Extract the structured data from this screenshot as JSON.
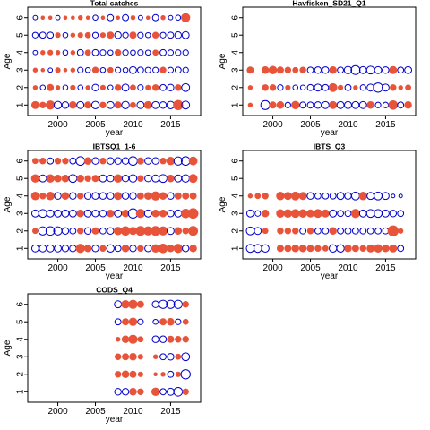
{
  "colors": {
    "positive": "#e8543a",
    "negative": "#0000cc",
    "axis": "#000000"
  },
  "chart_data": [
    {
      "type": "scatter",
      "title": "Total catches",
      "xlabel": "year",
      "ylabel": "Age",
      "xlim": [
        1996,
        2019
      ],
      "ylim": [
        0.4,
        6.6
      ],
      "xticks": [
        2000,
        2005,
        2010,
        2015
      ],
      "yticks": [
        1,
        2,
        3,
        4,
        5,
        6
      ],
      "years": [
        1997,
        1998,
        1999,
        2000,
        2001,
        2002,
        2003,
        2004,
        2005,
        2006,
        2007,
        2008,
        2009,
        2010,
        2011,
        2012,
        2013,
        2014,
        2015,
        2016,
        2017
      ],
      "residuals": {
        "1": [
          0.9,
          0.6,
          1.2,
          -0.9,
          -0.7,
          0.8,
          -0.8,
          0.7,
          -0.9,
          0.6,
          -0.8,
          0.7,
          -0.9,
          0.5,
          -0.8,
          0.9,
          -0.8,
          -0.7,
          -0.9,
          1.5,
          -1.0
        ],
        "2": [
          0.3,
          -0.4,
          0.7,
          0.3,
          -0.4,
          0.4,
          -0.4,
          0.3,
          -0.7,
          0.4,
          -0.4,
          0.6,
          -0.8,
          0.5,
          -0.5,
          0.4,
          0.6,
          -0.6,
          -0.7,
          0.6,
          -1.0
        ],
        "3": [
          0.3,
          0.2,
          -0.3,
          0.4,
          0.2,
          0.3,
          -0.5,
          -0.4,
          0.6,
          -0.4,
          0.5,
          -0.5,
          -0.4,
          -0.8,
          -0.6,
          -0.5,
          -0.5,
          0.6,
          -0.5,
          -0.6,
          -0.5
        ],
        "4": [
          -0.3,
          0.3,
          0.4,
          0.3,
          -0.4,
          0.3,
          -0.6,
          0.5,
          -0.6,
          -0.5,
          -0.4,
          0.6,
          -0.5,
          -0.4,
          -0.5,
          -0.4,
          0.5,
          -0.6,
          -0.5,
          -0.5,
          -0.5
        ],
        "5": [
          -0.5,
          -0.6,
          -0.6,
          0.4,
          -0.4,
          0.3,
          0.4,
          0.5,
          -0.5,
          0.4,
          0.7,
          -0.7,
          -0.5,
          0.7,
          -0.5,
          -0.4,
          0.6,
          -0.5,
          -0.6,
          -0.7,
          -0.8
        ],
        "6": [
          -0.3,
          0.2,
          0.2,
          -0.3,
          0.2,
          0.2,
          0.3,
          0.2,
          -0.4,
          0.2,
          -0.6,
          0.2,
          -0.6,
          0.3,
          -0.3,
          0.2,
          -0.6,
          0.3,
          -0.3,
          -0.4,
          1.2
        ]
      }
    },
    {
      "type": "scatter",
      "title": "Havfisken_SD21_Q1",
      "xlabel": "year",
      "ylabel": "Age",
      "xlim": [
        1996,
        2019
      ],
      "ylim": [
        0.4,
        6.6
      ],
      "xticks": [
        2000,
        2005,
        2010,
        2015
      ],
      "yticks": [
        1,
        2,
        3,
        4,
        5,
        6
      ],
      "years": [
        1997,
        1999,
        2000,
        2001,
        2002,
        2003,
        2004,
        2005,
        2006,
        2007,
        2008,
        2009,
        2010,
        2011,
        2012,
        2013,
        2014,
        2015,
        2016,
        2017,
        2018
      ],
      "residuals": {
        "1": [
          0.3,
          -1.3,
          0.7,
          0.8,
          -0.5,
          1.0,
          -0.6,
          -0.6,
          -0.7,
          -0.8,
          0.9,
          -0.8,
          -0.8,
          -0.8,
          -0.8,
          0.8,
          -0.5,
          -0.5,
          1.3,
          -0.6,
          0.8
        ],
        "2": [
          0.3,
          0.6,
          0.6,
          -0.5,
          0.4,
          -0.4,
          -0.4,
          -0.6,
          -0.8,
          -0.6,
          1.1,
          0.4,
          -0.6,
          0.3,
          -0.5,
          -0.8,
          -1.4,
          -0.8,
          0.6,
          0.3,
          0.5
        ],
        "3": [
          0.7,
          0.8,
          1.0,
          0.7,
          0.6,
          0.5,
          0.6,
          -0.6,
          -0.7,
          -0.7,
          0.8,
          -0.6,
          -0.9,
          -1.3,
          -0.8,
          -1.0,
          -0.8,
          -0.7,
          0.9,
          -0.6,
          -0.8
        ]
      }
    },
    {
      "type": "scatter",
      "title": "IBTSQ1_1-6",
      "xlabel": "year",
      "ylabel": "Age",
      "xlim": [
        1996,
        2019
      ],
      "ylim": [
        0.4,
        6.6
      ],
      "xticks": [
        2000,
        2005,
        2010,
        2015
      ],
      "yticks": [
        1,
        2,
        3,
        4,
        5,
        6
      ],
      "years": [
        1997,
        1998,
        1999,
        2000,
        2001,
        2002,
        2003,
        2004,
        2005,
        2006,
        2007,
        2008,
        2009,
        2010,
        2011,
        2012,
        2013,
        2014,
        2015,
        2016,
        2017,
        2018
      ],
      "residuals": {
        "1": [
          -0.8,
          -0.8,
          -0.8,
          -0.8,
          -0.7,
          -0.7,
          1.2,
          0.8,
          -0.7,
          0.6,
          -0.9,
          -0.6,
          0.8,
          -0.7,
          0.6,
          -0.7,
          1.0,
          1.3,
          0.8,
          1.2,
          -0.7,
          0.8
        ],
        "2": [
          0.5,
          -1.1,
          -1.2,
          -1.1,
          -0.7,
          -0.6,
          0.6,
          -0.7,
          0.7,
          -0.6,
          -0.7,
          1.0,
          1.3,
          0.9,
          1.4,
          1.2,
          1.4,
          1.2,
          -0.8,
          0.8,
          0.6,
          1.4
        ],
        "3": [
          -0.8,
          -1.0,
          -0.8,
          -0.8,
          -0.8,
          -0.8,
          0.8,
          -0.8,
          -0.7,
          -0.7,
          0.8,
          -0.8,
          0.8,
          -1.4,
          1.2,
          -0.8,
          0.8,
          0.8,
          -0.7,
          -0.8,
          1.3,
          1.6
        ],
        "4": [
          1.0,
          0.6,
          1.0,
          -0.7,
          0.8,
          -0.7,
          0.6,
          -0.7,
          -0.7,
          -0.7,
          -0.7,
          0.9,
          -0.7,
          -0.7,
          0.7,
          0.8,
          1.2,
          0.8,
          -0.7,
          0.7,
          0.7,
          0.7
        ],
        "5": [
          1.0,
          -0.8,
          1.0,
          0.8,
          0.8,
          -1.0,
          0.8,
          0.6,
          0.7,
          -0.8,
          -0.7,
          1.0,
          -0.7,
          -0.9,
          0.6,
          -0.7,
          -0.8,
          -1.0,
          0.8,
          -0.8,
          -0.9,
          1.1
        ],
        "6": [
          0.5,
          0.6,
          -0.6,
          0.6,
          0.6,
          -0.6,
          -1.2,
          0.8,
          -0.7,
          0.6,
          -0.7,
          -0.7,
          -0.7,
          -1.2,
          0.7,
          -0.7,
          -0.7,
          0.6,
          1.0,
          -1.1,
          -1.2,
          1.1
        ]
      }
    },
    {
      "type": "scatter",
      "title": "IBTS_Q3",
      "xlabel": "year",
      "ylabel": "Age",
      "xlim": [
        1996,
        2019
      ],
      "ylim": [
        0.4,
        6.6
      ],
      "xticks": [
        2000,
        2005,
        2010,
        2015
      ],
      "yticks": [
        1,
        2,
        3,
        4,
        5,
        6
      ],
      "years": [
        1997,
        1998,
        1999,
        2001,
        2002,
        2003,
        2004,
        2005,
        2006,
        2007,
        2008,
        2009,
        2010,
        2011,
        2012,
        2013,
        2014,
        2015,
        2016,
        2017
      ],
      "residuals": {
        "1": [
          -1.0,
          -1.0,
          -0.9,
          0.7,
          0.7,
          0.8,
          0.8,
          0.7,
          0.6,
          0.5,
          -0.9,
          -0.9,
          0.8,
          0.7,
          0.6,
          0.9,
          1.0,
          0.8,
          0.9,
          -0.6
        ],
        "2": [
          -1.0,
          -0.8,
          0.5,
          0.6,
          0.6,
          0.6,
          -0.6,
          0.6,
          -0.6,
          -0.6,
          0.8,
          -0.6,
          -0.6,
          -0.6,
          -0.6,
          -0.6,
          -0.6,
          -0.6,
          1.8,
          0.4
        ],
        "3": [
          -0.8,
          -0.5,
          0.8,
          1.0,
          1.0,
          1.1,
          1.0,
          0.9,
          1.1,
          0.9,
          -0.8,
          -0.6,
          -0.6,
          1.2,
          -0.8,
          -1.0,
          -1.0,
          -0.8,
          -0.7,
          -0.6
        ],
        "4": [
          0.3,
          0.5,
          0.6,
          1.0,
          0.9,
          1.1,
          0.9,
          -0.7,
          -0.6,
          -0.6,
          -0.6,
          -0.8,
          -0.7,
          -1.0,
          1.0,
          -0.8,
          -1.0,
          -0.8,
          -0.2,
          -0.2
        ]
      }
    },
    {
      "type": "scatter",
      "title": "CODS_Q4",
      "xlabel": "year",
      "ylabel": "Age",
      "xlim": [
        1996,
        2019
      ],
      "ylim": [
        0.4,
        6.6
      ],
      "xticks": [
        2000,
        2005,
        2010,
        2015
      ],
      "yticks": [
        1,
        2,
        3,
        4,
        5,
        6
      ],
      "years": [
        2008,
        2009,
        2010,
        2011,
        2013,
        2014,
        2015,
        2016,
        2017
      ],
      "residuals": {
        "1": [
          -0.7,
          -0.7,
          0.8,
          0.6,
          1.0,
          -0.6,
          -0.8,
          -1.2,
          0.6
        ],
        "2": [
          0.6,
          0.8,
          0.7,
          0.4,
          0.2,
          0.3,
          -0.6,
          0.4,
          -1.4
        ],
        "3": [
          0.6,
          0.7,
          0.8,
          0.4,
          0.3,
          -0.6,
          -0.7,
          0.5,
          -1.0
        ],
        "4": [
          0.3,
          0.8,
          1.2,
          0.5,
          -0.7,
          -0.7,
          0.7,
          0.6,
          0.6
        ],
        "5": [
          -0.6,
          0.7,
          1.0,
          -0.5,
          -0.4,
          0.7,
          0.8,
          -0.5,
          0.5
        ],
        "6": [
          -0.8,
          1.0,
          1.2,
          0.7,
          -0.7,
          -1.1,
          -1.1,
          -1.1,
          0.6
        ]
      }
    }
  ]
}
